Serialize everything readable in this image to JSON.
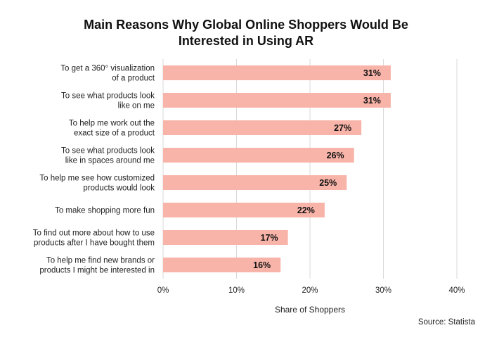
{
  "chart_data": {
    "type": "bar",
    "orientation": "horizontal",
    "title_lines": [
      "Main Reasons Why Global Online Shoppers Would Be",
      "Interested in Using AR"
    ],
    "categories": [
      [
        "To get a 360° visualization",
        "of a product"
      ],
      [
        "To see what products look",
        "like on me"
      ],
      [
        "To help me work out the",
        "exact size of a product"
      ],
      [
        "To see what products look",
        "like in spaces around me"
      ],
      [
        "To help me see how customized",
        "products would look"
      ],
      [
        "To make shopping more fun"
      ],
      [
        "To find out more about how to use",
        "products after I have bought them"
      ],
      [
        "To help me find new brands or",
        "products I might be interested in"
      ]
    ],
    "values": [
      31,
      31,
      27,
      26,
      25,
      22,
      17,
      16
    ],
    "value_labels": [
      "31%",
      "31%",
      "27%",
      "26%",
      "25%",
      "22%",
      "17%",
      "16%"
    ],
    "xlim": [
      0,
      40
    ],
    "xticks": [
      0,
      10,
      20,
      30,
      40
    ],
    "xtick_labels": [
      "0%",
      "10%",
      "20%",
      "30%",
      "40%"
    ],
    "xlabel": "Share of Shoppers",
    "ylabel": "",
    "grid": "vertical",
    "legend": "none",
    "bar_color": "#f9b4a9",
    "grid_color": "#d9d9d9",
    "source": "Source: Statista"
  }
}
